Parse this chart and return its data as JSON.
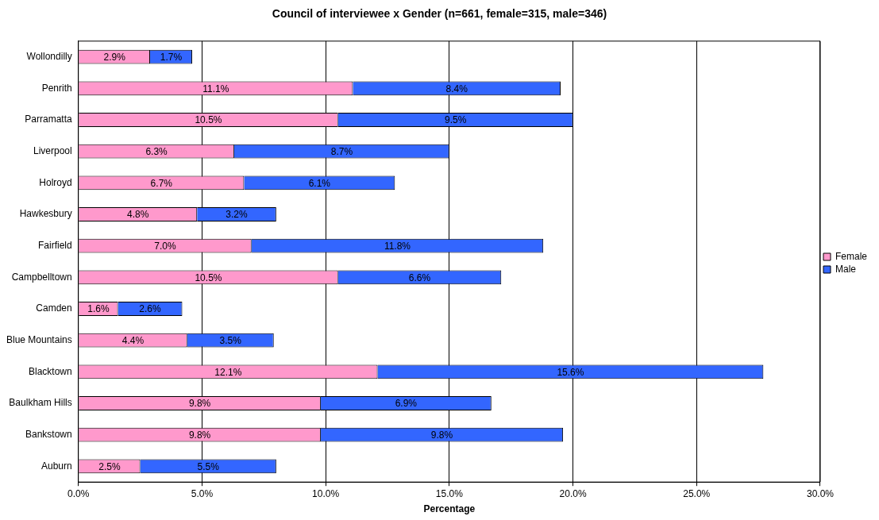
{
  "chart_data": {
    "type": "bar",
    "orientation": "horizontal",
    "stacked": true,
    "title": "Council of interviewee x Gender (n=661, female=315, male=346)",
    "xlabel": "Percentage",
    "categories": [
      "Wollondilly",
      "Penrith",
      "Parramatta",
      "Liverpool",
      "Holroyd",
      "Hawkesbury",
      "Fairfield",
      "Campbelltown",
      "Camden",
      "Blue Mountains",
      "Blacktown",
      "Baulkham Hills",
      "Bankstown",
      "Auburn"
    ],
    "series": [
      {
        "name": "Female",
        "color": "#ff99cc",
        "values": [
          2.9,
          11.1,
          10.5,
          6.3,
          6.7,
          4.8,
          7.0,
          10.5,
          1.6,
          4.4,
          12.1,
          9.8,
          9.8,
          2.5
        ],
        "value_labels": [
          "2.9%",
          "11.1%",
          "10.5%",
          "6.3%",
          "6.7%",
          "4.8%",
          "7.0%",
          "10.5%",
          "1.6%",
          "4.4%",
          "12.1%",
          "9.8%",
          "9.8%",
          "2.5%"
        ]
      },
      {
        "name": "Male",
        "color": "#3366ff",
        "values": [
          1.7,
          8.4,
          9.5,
          8.7,
          6.1,
          3.2,
          11.8,
          6.6,
          2.6,
          3.5,
          15.6,
          6.9,
          9.8,
          5.5
        ],
        "value_labels": [
          "1.7%",
          "8.4%",
          "9.5%",
          "8.7%",
          "6.1%",
          "3.2%",
          "11.8%",
          "6.6%",
          "2.6%",
          "3.5%",
          "15.6%",
          "6.9%",
          "9.8%",
          "5.5%"
        ]
      }
    ],
    "xlim": [
      0,
      30
    ],
    "xticks": [
      {
        "value": 0,
        "label": "0.0%"
      },
      {
        "value": 5,
        "label": "5.0%"
      },
      {
        "value": 10,
        "label": "10.0%"
      },
      {
        "value": 15,
        "label": "15.0%"
      },
      {
        "value": 20,
        "label": "20.0%"
      },
      {
        "value": 25,
        "label": "25.0%"
      },
      {
        "value": 30,
        "label": "30.0%"
      }
    ],
    "grid": "x",
    "legend": "right"
  }
}
